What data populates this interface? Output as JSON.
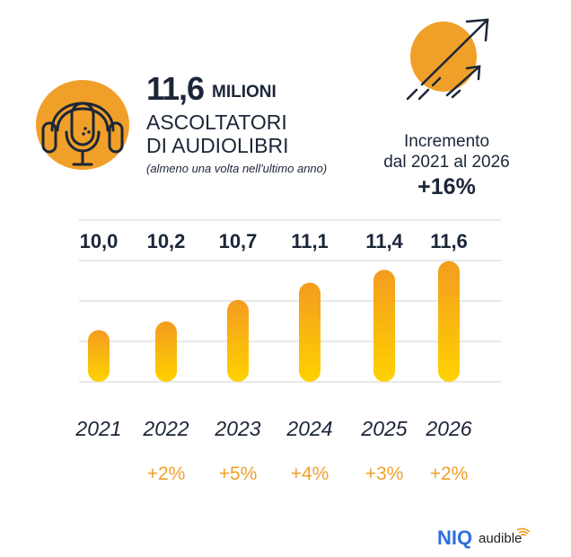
{
  "header": {
    "headline_value": "11,6",
    "headline_unit": "MILIONI",
    "subtitle_line1": "ASCOLTATORI",
    "subtitle_line2": "DI AUDIOLIBRI",
    "note": "(almeno una volta nell'ultimo anno)",
    "icon": "headphones-microphone-icon",
    "increase_line1": "Incremento",
    "increase_line2": "dal 2021 al 2026",
    "increase_value": "+16%",
    "increase_icon": "rising-arrows-icon"
  },
  "colors": {
    "accent": "#f0a029",
    "bar_top": "#f39c1f",
    "bar_bottom": "#ffd200",
    "text": "#1b2638",
    "niq": "#2f6fdc"
  },
  "chart_data": {
    "type": "bar",
    "categories": [
      "2021",
      "2022",
      "2023",
      "2024",
      "2025",
      "2026"
    ],
    "values": [
      10.0,
      10.2,
      10.7,
      11.1,
      11.4,
      11.6
    ],
    "value_labels": [
      "10,0",
      "10,2",
      "10,7",
      "11,1",
      "11,4",
      "11,6"
    ],
    "changes": [
      "",
      "+2%",
      "+5%",
      "+4%",
      "+3%",
      "+2%"
    ],
    "unit": "milioni",
    "grid": true,
    "ylim": [
      8.8,
      12.6
    ]
  },
  "footer": {
    "logo1": "NIQ",
    "logo2": "audible"
  }
}
